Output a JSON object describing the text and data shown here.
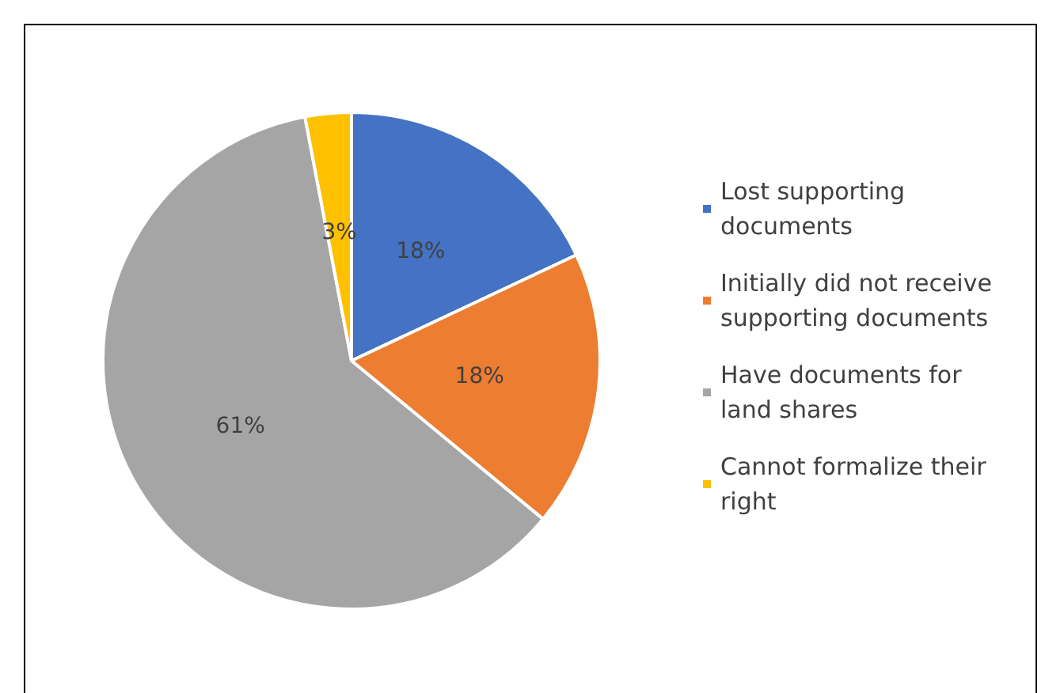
{
  "chart_data": {
    "type": "pie",
    "categories": [
      "Lost supporting documents",
      "Initially did not receive supporting documents",
      "Have documents for land shares",
      "Cannot formalize their right"
    ],
    "values": [
      18,
      18,
      61,
      3
    ],
    "colors": [
      "#4472c4",
      "#ed7d31",
      "#a5a5a5",
      "#ffc000"
    ],
    "value_labels": [
      "18%",
      "18%",
      "61%",
      "3%"
    ],
    "legend": "right"
  }
}
